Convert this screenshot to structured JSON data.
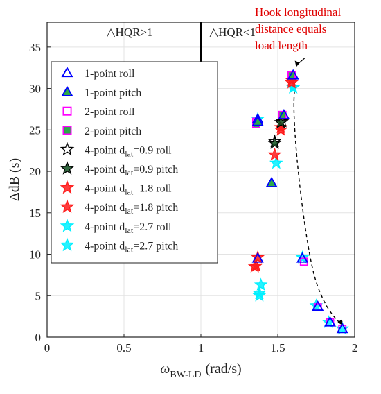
{
  "chart_data": {
    "type": "scatter",
    "xlim": [
      0,
      2
    ],
    "ylim": [
      0,
      38
    ],
    "x_ticks": [
      "0",
      "0.5",
      "1",
      "1.5",
      "2"
    ],
    "y_ticks": [
      "0",
      "5",
      "10",
      "15",
      "20",
      "25",
      "30",
      "35"
    ],
    "xlabel": {
      "main": "ω",
      "sub": "BW-LD",
      "unit": "(rad/s)"
    },
    "ylabel": "ΔdB (s)",
    "grid": true,
    "legend_placement": "upper-left",
    "regions": [
      {
        "label": "△HQR>1"
      },
      {
        "label": "△HQR<1"
      }
    ],
    "boundary_x": 1.0,
    "annotation": {
      "lines": [
        "Hook longitudinal",
        "distance equals",
        "load length"
      ],
      "color": "#e00000",
      "arrow_to": [
        1.62,
        32.6
      ]
    },
    "trend_curve": [
      [
        1.62,
        31.2
      ],
      [
        1.6,
        28.5
      ],
      [
        1.62,
        22
      ],
      [
        1.67,
        14
      ],
      [
        1.73,
        7.5
      ],
      [
        1.8,
        4.2
      ],
      [
        1.87,
        2.3
      ],
      [
        1.93,
        1.3
      ]
    ],
    "series": [
      {
        "name": "1-point roll",
        "marker": "triangle",
        "fill": "none",
        "stroke": "#0000ff",
        "x": [
          1.37,
          1.46,
          1.54,
          1.6,
          1.37,
          1.66,
          1.76,
          1.84,
          1.92
        ],
        "y": [
          26.3,
          18.6,
          26.8,
          31.6,
          9.5,
          9.5,
          3.7,
          1.8,
          1.0
        ]
      },
      {
        "name": "1-point pitch",
        "marker": "triangle",
        "fill": "#2ea84a",
        "stroke": "#0000ff",
        "x": [
          1.37,
          1.46
        ],
        "y": [
          26.0,
          18.6
        ]
      },
      {
        "name": "2-point roll",
        "marker": "square",
        "fill": "none",
        "stroke": "#ff00ff",
        "x": [
          1.36,
          1.53,
          1.59,
          1.67,
          1.76,
          1.84,
          1.92
        ],
        "y": [
          26.0,
          26.8,
          31.6,
          9.1,
          3.6,
          1.8,
          1.0
        ]
      },
      {
        "name": "2-point pitch",
        "marker": "square",
        "fill": "#2ea84a",
        "stroke": "#ff00ff",
        "x": [
          1.36,
          1.53,
          1.59
        ],
        "y": [
          25.7,
          26.8,
          31.6
        ]
      },
      {
        "name": "4-point d_lat=0.9 roll",
        "label_main": "4-point d",
        "label_sub": "lat",
        "label_rest": "=0.9 roll",
        "marker": "star",
        "fill": "none",
        "stroke": "#000000",
        "x": [
          1.48,
          1.53
        ],
        "y": [
          23.6,
          26.0
        ]
      },
      {
        "name": "4-point d_lat=0.9 pitch",
        "label_main": "4-point d",
        "label_sub": "lat",
        "label_rest": "=0.9 pitch",
        "marker": "star",
        "fill": "#0f4d1e",
        "stroke": "#000000",
        "x": [
          1.48,
          1.52
        ],
        "y": [
          23.4,
          25.9
        ]
      },
      {
        "name": "4-point d_lat=1.8 roll",
        "label_main": "4-point d",
        "label_sub": "lat",
        "label_rest": "=1.8 roll",
        "marker": "star",
        "fill": "#ff1a1a",
        "stroke": "#ff1a1a",
        "x": [
          1.35,
          1.48,
          1.52,
          1.59,
          1.37
        ],
        "y": [
          8.5,
          22.0,
          25.3,
          31.0,
          9.6
        ]
      },
      {
        "name": "4-point d_lat=1.8 pitch",
        "label_main": "4-point d",
        "label_sub": "lat",
        "label_rest": "=1.8 pitch",
        "marker": "star",
        "fill": "#ff1a1a",
        "stroke": "#ff1a1a",
        "x": [
          1.36,
          1.52,
          1.59
        ],
        "y": [
          8.6,
          25.0,
          30.7
        ]
      },
      {
        "name": "4-point d_lat=2.7 roll",
        "label_main": "4-point d",
        "label_sub": "lat",
        "label_rest": "=2.7 roll",
        "marker": "star",
        "fill": "#00f0ff",
        "stroke": "#00f0ff",
        "x": [
          1.38,
          1.49,
          1.6,
          1.66,
          1.75,
          1.83,
          1.92
        ],
        "y": [
          5.0,
          21.0,
          30.1,
          9.6,
          3.8,
          1.8,
          1.0
        ]
      },
      {
        "name": "4-point d_lat=2.7 pitch",
        "label_main": "4-point d",
        "label_sub": "lat",
        "label_rest": "=2.7 pitch",
        "marker": "star",
        "fill": "#00f0ff",
        "stroke": "#00f0ff",
        "x": [
          1.38,
          1.39,
          1.37,
          1.6
        ],
        "y": [
          5.3,
          6.3,
          26.3,
          30.1
        ]
      }
    ]
  }
}
